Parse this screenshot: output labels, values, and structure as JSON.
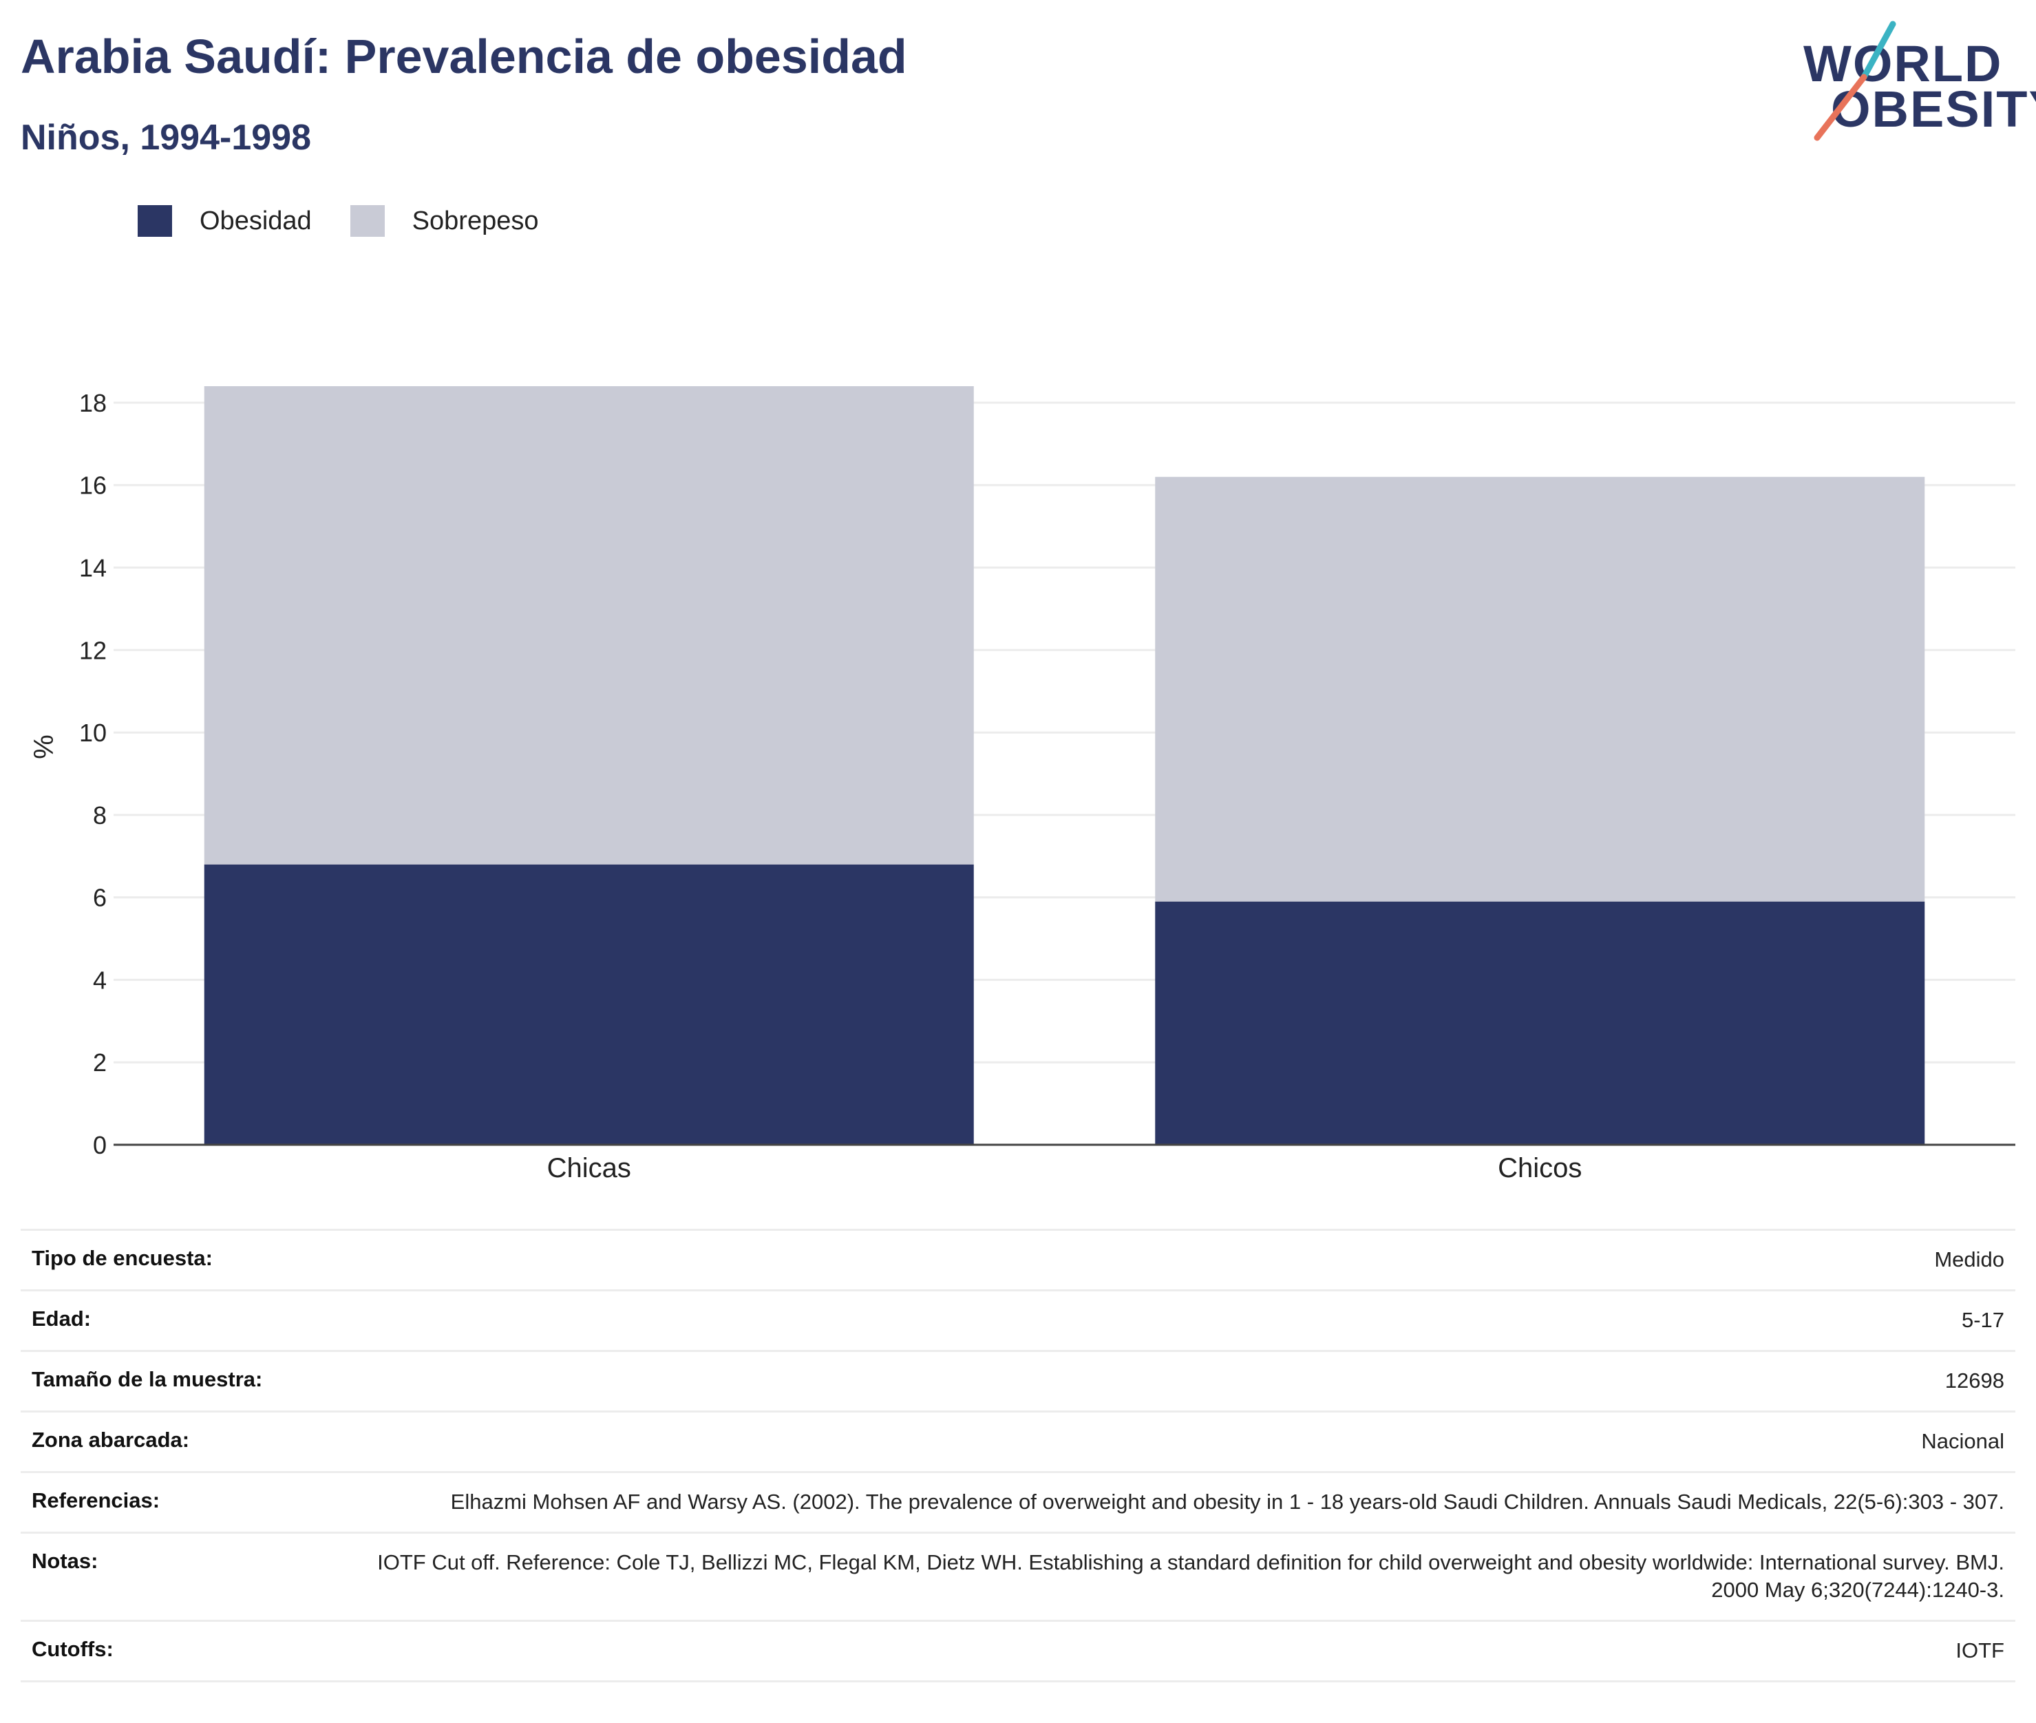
{
  "header": {
    "title": "Arabia Saudí: Prevalencia de obesidad",
    "subtitle": "Niños, 1994-1998"
  },
  "logo": {
    "line1": "WORLD",
    "line2": "OBESITY",
    "accent_colors": [
      "#3bb3c3",
      "#e8735a"
    ]
  },
  "legend": [
    {
      "label": "Obesidad",
      "color": "#2b3664"
    },
    {
      "label": "Sobrepeso",
      "color": "#c9cbd6"
    }
  ],
  "chart_data": {
    "type": "bar",
    "stacked": true,
    "categories": [
      "Chicas",
      "Chicos"
    ],
    "series": [
      {
        "name": "Obesidad",
        "color": "#2b3664",
        "values": [
          6.8,
          5.9
        ]
      },
      {
        "name": "Sobrepeso",
        "color": "#c9cbd6",
        "values": [
          11.6,
          10.3
        ]
      }
    ],
    "totals": [
      18.4,
      16.2
    ],
    "ylabel": "%",
    "ylim": [
      0,
      18.4
    ],
    "yticks": [
      0,
      2,
      4,
      6,
      8,
      10,
      12,
      14,
      16,
      18
    ],
    "grid": true,
    "legend_position": "top-left"
  },
  "details": [
    {
      "label": "Tipo de encuesta:",
      "value": "Medido"
    },
    {
      "label": "Edad:",
      "value": "5-17"
    },
    {
      "label": "Tamaño de la muestra:",
      "value": "12698"
    },
    {
      "label": "Zona abarcada:",
      "value": "Nacional"
    },
    {
      "label": "Referencias:",
      "value": "Elhazmi Mohsen AF and Warsy AS. (2002). The prevalence of overweight and obesity in 1 - 18 years-old Saudi Children. Annuals Saudi Medicals, 22(5-6):303 - 307."
    },
    {
      "label": "Notas:",
      "value": "IOTF Cut off. Reference: Cole TJ, Bellizzi MC, Flegal KM, Dietz WH. Establishing a standard definition for child overweight and obesity worldwide: International survey. BMJ. 2000 May 6;320(7244):1240-3."
    },
    {
      "label": "Cutoffs:",
      "value": "IOTF"
    }
  ]
}
